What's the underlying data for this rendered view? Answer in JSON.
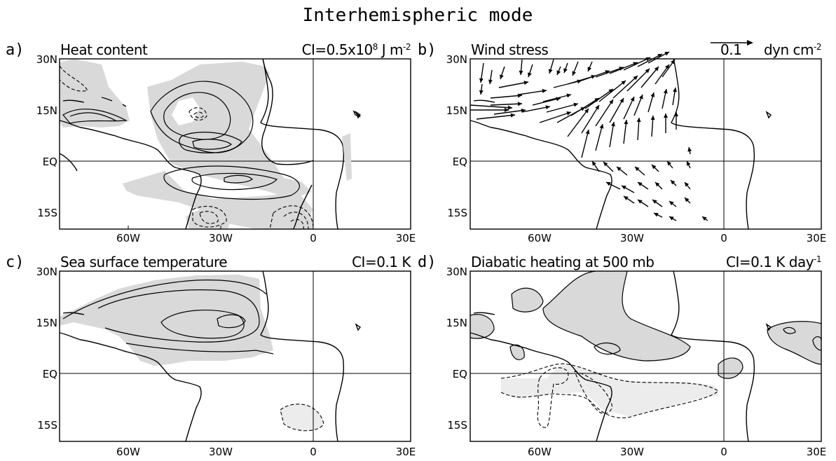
{
  "figure_title": "Interhemispheric mode",
  "lat_ticks": [
    "30N",
    "15N",
    "EQ",
    "15S"
  ],
  "lon_ticks": [
    "60W",
    "30W",
    "0",
    "30E"
  ],
  "panels": [
    {
      "label": "a)",
      "title": "Heat content",
      "ci_prefix": "CI=0.5x10",
      "ci_sup": "8",
      "ci_unit": " J m",
      "ci_unit_sup": "-2"
    },
    {
      "label": "b)",
      "title": "Wind stress",
      "ref_value": "0.1",
      "ref_unit": "dyn cm",
      "ref_unit_sup": "-2"
    },
    {
      "label": "c)",
      "title": "Sea surface temperature",
      "ci_text": "CI=0.1 K"
    },
    {
      "label": "d)",
      "title": "Diabatic heating at 500 mb",
      "ci_prefix": "CI=0.1 K day",
      "ci_sup": "-1"
    }
  ],
  "colors": {
    "shading": "#d9d9d9",
    "lines": "#000000"
  }
}
